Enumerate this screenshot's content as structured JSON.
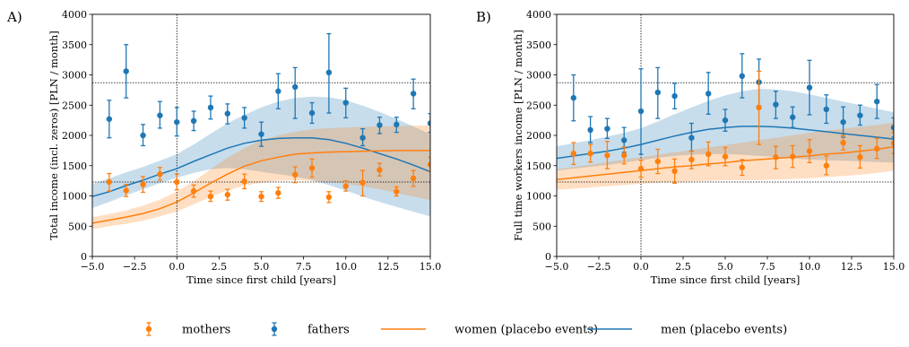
{
  "colors": {
    "mothers": "#ff7f0e",
    "fathers": "#1f77b4"
  },
  "legend": {
    "items": [
      {
        "label": "mothers",
        "kind": "errorbar",
        "series": "mothers"
      },
      {
        "label": "fathers",
        "kind": "errorbar",
        "series": "fathers"
      },
      {
        "label": "women (placebo events)",
        "kind": "line",
        "series": "mothers"
      },
      {
        "label": "men (placebo events)",
        "kind": "line",
        "series": "fathers"
      }
    ]
  },
  "chart_data": [
    {
      "type": "scatter",
      "panel_label": "A)",
      "xlabel": "Time since first child [years]",
      "ylabel": "Total income (incl. zeros) [PLN / month]",
      "xlim": [
        -5,
        15
      ],
      "ylim": [
        0,
        4000
      ],
      "xticks": [
        "−5.0",
        "−2.5",
        "0.0",
        "2.5",
        "5.0",
        "7.5",
        "10.0",
        "12.5",
        "15.0"
      ],
      "xtick_values": [
        -5,
        -2.5,
        0,
        2.5,
        5,
        7.5,
        10,
        12.5,
        15
      ],
      "yticks": [
        "0",
        "500",
        "1000",
        "1500",
        "2000",
        "2500",
        "3000",
        "3500",
        "4000"
      ],
      "ytick_values": [
        0,
        500,
        1000,
        1500,
        2000,
        2500,
        3000,
        3500,
        4000
      ],
      "hlines": [
        2870,
        1230
      ],
      "vline": 0,
      "series": [
        {
          "name": "fathers",
          "points": [
            {
              "x": -4,
              "y": 2270,
              "lo": 1960,
              "hi": 2580
            },
            {
              "x": -3,
              "y": 3060,
              "lo": 2620,
              "hi": 3500
            },
            {
              "x": -2,
              "y": 2000,
              "lo": 1830,
              "hi": 2180
            },
            {
              "x": -1,
              "y": 2330,
              "lo": 2120,
              "hi": 2560
            },
            {
              "x": 0,
              "y": 2220,
              "lo": 1990,
              "hi": 2460
            },
            {
              "x": 1,
              "y": 2240,
              "lo": 2080,
              "hi": 2400
            },
            {
              "x": 2,
              "y": 2460,
              "lo": 2270,
              "hi": 2650
            },
            {
              "x": 3,
              "y": 2360,
              "lo": 2190,
              "hi": 2520
            },
            {
              "x": 4,
              "y": 2290,
              "lo": 2120,
              "hi": 2460
            },
            {
              "x": 5,
              "y": 2020,
              "lo": 1820,
              "hi": 2220
            },
            {
              "x": 6,
              "y": 2730,
              "lo": 2440,
              "hi": 3020
            },
            {
              "x": 7,
              "y": 2800,
              "lo": 2280,
              "hi": 3120
            },
            {
              "x": 8,
              "y": 2370,
              "lo": 2200,
              "hi": 2540
            },
            {
              "x": 9,
              "y": 3040,
              "lo": 2370,
              "hi": 3680
            },
            {
              "x": 10,
              "y": 2540,
              "lo": 2290,
              "hi": 2780
            },
            {
              "x": 11,
              "y": 1960,
              "lo": 1830,
              "hi": 2110
            },
            {
              "x": 12,
              "y": 2170,
              "lo": 2030,
              "hi": 2300
            },
            {
              "x": 13,
              "y": 2180,
              "lo": 2050,
              "hi": 2300
            },
            {
              "x": 14,
              "y": 2690,
              "lo": 2440,
              "hi": 2930
            },
            {
              "x": 15,
              "y": 2200,
              "lo": 2050,
              "hi": 2360
            }
          ]
        },
        {
          "name": "mothers",
          "points": [
            {
              "x": -4,
              "y": 1230,
              "lo": 1080,
              "hi": 1370
            },
            {
              "x": -3,
              "y": 1090,
              "lo": 990,
              "hi": 1190
            },
            {
              "x": -2,
              "y": 1190,
              "lo": 1060,
              "hi": 1320
            },
            {
              "x": -1,
              "y": 1360,
              "lo": 1260,
              "hi": 1470
            },
            {
              "x": 0,
              "y": 1230,
              "lo": 1100,
              "hi": 1360
            },
            {
              "x": 1,
              "y": 1080,
              "lo": 980,
              "hi": 1180
            },
            {
              "x": 2,
              "y": 990,
              "lo": 910,
              "hi": 1080
            },
            {
              "x": 3,
              "y": 1020,
              "lo": 930,
              "hi": 1110
            },
            {
              "x": 4,
              "y": 1240,
              "lo": 1120,
              "hi": 1360
            },
            {
              "x": 5,
              "y": 990,
              "lo": 910,
              "hi": 1070
            },
            {
              "x": 6,
              "y": 1050,
              "lo": 960,
              "hi": 1140
            },
            {
              "x": 7,
              "y": 1350,
              "lo": 1220,
              "hi": 1480
            },
            {
              "x": 8,
              "y": 1460,
              "lo": 1310,
              "hi": 1610
            },
            {
              "x": 9,
              "y": 980,
              "lo": 890,
              "hi": 1070
            },
            {
              "x": 10,
              "y": 1160,
              "lo": 1080,
              "hi": 1250
            },
            {
              "x": 11,
              "y": 1220,
              "lo": 1000,
              "hi": 1420
            },
            {
              "x": 12,
              "y": 1430,
              "lo": 1330,
              "hi": 1540
            },
            {
              "x": 13,
              "y": 1070,
              "lo": 1000,
              "hi": 1150
            },
            {
              "x": 14,
              "y": 1290,
              "lo": 1160,
              "hi": 1420
            },
            {
              "x": 15,
              "y": 1520,
              "lo": 1400,
              "hi": 1640
            }
          ]
        }
      ],
      "placebo": [
        {
          "name": "men (placebo events)",
          "series": "fathers",
          "x": [
            -5,
            -4,
            -3,
            -2,
            -1,
            0,
            1,
            2,
            3,
            4,
            5,
            6,
            7,
            8,
            9,
            10,
            11,
            12,
            13,
            14,
            15
          ],
          "y": [
            990,
            1070,
            1170,
            1260,
            1360,
            1450,
            1570,
            1680,
            1790,
            1870,
            1920,
            1950,
            1960,
            1960,
            1930,
            1870,
            1790,
            1700,
            1610,
            1510,
            1400
          ],
          "band_lo": [
            800,
            900,
            1010,
            1110,
            1210,
            1300,
            1380,
            1440,
            1460,
            1440,
            1400,
            1360,
            1320,
            1260,
            1180,
            1090,
            990,
            900,
            820,
            740,
            660
          ],
          "band_hi": [
            1200,
            1290,
            1390,
            1480,
            1580,
            1690,
            1850,
            2030,
            2200,
            2340,
            2460,
            2560,
            2620,
            2640,
            2630,
            2580,
            2490,
            2390,
            2270,
            2150,
            2020
          ]
        },
        {
          "name": "women (placebo events)",
          "series": "mothers",
          "x": [
            -5,
            -4,
            -3,
            -2,
            -1,
            0,
            1,
            2,
            3,
            4,
            5,
            6,
            7,
            8,
            9,
            10,
            11,
            12,
            13,
            14,
            15
          ],
          "y": [
            550,
            600,
            650,
            710,
            790,
            900,
            1050,
            1210,
            1360,
            1490,
            1580,
            1640,
            1690,
            1710,
            1725,
            1730,
            1740,
            1745,
            1750,
            1750,
            1750
          ],
          "band_lo": [
            450,
            500,
            540,
            590,
            660,
            740,
            860,
            980,
            1090,
            1170,
            1220,
            1250,
            1260,
            1250,
            1230,
            1200,
            1160,
            1110,
            1050,
            990,
            930
          ],
          "band_hi": [
            650,
            700,
            760,
            840,
            940,
            1070,
            1240,
            1440,
            1630,
            1790,
            1920,
            2000,
            2060,
            2100,
            2120,
            2130,
            2140,
            2150,
            2155,
            2160,
            2170
          ]
        }
      ]
    },
    {
      "type": "scatter",
      "panel_label": "B)",
      "xlabel": "Time since first child [years]",
      "ylabel": "Full time workers income [PLN / month]",
      "xlim": [
        -5,
        15
      ],
      "ylim": [
        0,
        4000
      ],
      "xticks": [
        "−5.0",
        "−2.5",
        "0.0",
        "2.5",
        "5.0",
        "7.5",
        "10.0",
        "12.5",
        "15.0"
      ],
      "xtick_values": [
        -5,
        -2.5,
        0,
        2.5,
        5,
        7.5,
        10,
        12.5,
        15
      ],
      "yticks": [
        "0",
        "500",
        "1000",
        "1500",
        "2000",
        "2500",
        "3000",
        "3500",
        "4000"
      ],
      "ytick_values": [
        0,
        500,
        1000,
        1500,
        2000,
        2500,
        3000,
        3500,
        4000
      ],
      "hlines": [
        2870,
        1230
      ],
      "vline": 0,
      "series": [
        {
          "name": "fathers",
          "points": [
            {
              "x": -4,
              "y": 2620,
              "lo": 2240,
              "hi": 3000
            },
            {
              "x": -3,
              "y": 2090,
              "lo": 1880,
              "hi": 2310
            },
            {
              "x": -2,
              "y": 2110,
              "lo": 1950,
              "hi": 2280
            },
            {
              "x": -1,
              "y": 1920,
              "lo": 1720,
              "hi": 2130
            },
            {
              "x": 0,
              "y": 2400,
              "lo": 1690,
              "hi": 3100
            },
            {
              "x": 1,
              "y": 2710,
              "lo": 2280,
              "hi": 3120
            },
            {
              "x": 2,
              "y": 2650,
              "lo": 2440,
              "hi": 2860
            },
            {
              "x": 3,
              "y": 1960,
              "lo": 1740,
              "hi": 2200
            },
            {
              "x": 4,
              "y": 2690,
              "lo": 2350,
              "hi": 3040
            },
            {
              "x": 5,
              "y": 2250,
              "lo": 2070,
              "hi": 2430
            },
            {
              "x": 6,
              "y": 2980,
              "lo": 2620,
              "hi": 3350
            },
            {
              "x": 7,
              "y": 2880,
              "lo": 2490,
              "hi": 3260
            },
            {
              "x": 8,
              "y": 2510,
              "lo": 2280,
              "hi": 2730
            },
            {
              "x": 9,
              "y": 2300,
              "lo": 2130,
              "hi": 2470
            },
            {
              "x": 10,
              "y": 2790,
              "lo": 2340,
              "hi": 3240
            },
            {
              "x": 11,
              "y": 2430,
              "lo": 2200,
              "hi": 2670
            },
            {
              "x": 12,
              "y": 2220,
              "lo": 1970,
              "hi": 2470
            },
            {
              "x": 13,
              "y": 2330,
              "lo": 2170,
              "hi": 2500
            },
            {
              "x": 14,
              "y": 2560,
              "lo": 2280,
              "hi": 2840
            },
            {
              "x": 15,
              "y": 2130,
              "lo": 1970,
              "hi": 2290
            }
          ]
        },
        {
          "name": "mothers",
          "points": [
            {
              "x": -4,
              "y": 1700,
              "lo": 1520,
              "hi": 1880
            },
            {
              "x": -3,
              "y": 1700,
              "lo": 1560,
              "hi": 1850
            },
            {
              "x": -2,
              "y": 1670,
              "lo": 1450,
              "hi": 1900
            },
            {
              "x": -1,
              "y": 1670,
              "lo": 1530,
              "hi": 1810
            },
            {
              "x": 0,
              "y": 1450,
              "lo": 1310,
              "hi": 1590
            },
            {
              "x": 1,
              "y": 1570,
              "lo": 1370,
              "hi": 1770
            },
            {
              "x": 2,
              "y": 1410,
              "lo": 1210,
              "hi": 1610
            },
            {
              "x": 3,
              "y": 1600,
              "lo": 1450,
              "hi": 1740
            },
            {
              "x": 4,
              "y": 1690,
              "lo": 1500,
              "hi": 1890
            },
            {
              "x": 5,
              "y": 1650,
              "lo": 1500,
              "hi": 1800
            },
            {
              "x": 6,
              "y": 1470,
              "lo": 1340,
              "hi": 1600
            },
            {
              "x": 7,
              "y": 2460,
              "lo": 1850,
              "hi": 3060
            },
            {
              "x": 8,
              "y": 1640,
              "lo": 1450,
              "hi": 1820
            },
            {
              "x": 9,
              "y": 1650,
              "lo": 1470,
              "hi": 1830
            },
            {
              "x": 10,
              "y": 1740,
              "lo": 1550,
              "hi": 1930
            },
            {
              "x": 11,
              "y": 1500,
              "lo": 1350,
              "hi": 1660
            },
            {
              "x": 12,
              "y": 1880,
              "lo": 1760,
              "hi": 2000
            },
            {
              "x": 13,
              "y": 1640,
              "lo": 1460,
              "hi": 1830
            },
            {
              "x": 14,
              "y": 1780,
              "lo": 1620,
              "hi": 1950
            },
            {
              "x": 15,
              "y": 1870,
              "lo": 1700,
              "hi": 2050
            }
          ]
        }
      ],
      "placebo": [
        {
          "name": "men (placebo events)",
          "series": "fathers",
          "x": [
            -5,
            -4,
            -3,
            -2,
            -1,
            0,
            1,
            2,
            3,
            4,
            5,
            6,
            7,
            8,
            9,
            10,
            11,
            12,
            13,
            14,
            15
          ],
          "y": [
            1620,
            1660,
            1700,
            1740,
            1790,
            1850,
            1920,
            1990,
            2050,
            2100,
            2130,
            2150,
            2150,
            2140,
            2120,
            2090,
            2060,
            2030,
            2000,
            1970,
            1940
          ],
          "band_lo": [
            1420,
            1450,
            1480,
            1510,
            1550,
            1590,
            1630,
            1660,
            1680,
            1690,
            1690,
            1680,
            1660,
            1640,
            1620,
            1600,
            1590,
            1580,
            1570,
            1560,
            1550
          ],
          "band_hi": [
            1820,
            1870,
            1920,
            1980,
            2040,
            2120,
            2230,
            2350,
            2460,
            2570,
            2660,
            2730,
            2770,
            2760,
            2730,
            2680,
            2620,
            2560,
            2500,
            2440,
            2380
          ]
        },
        {
          "name": "women (placebo events)",
          "series": "mothers",
          "x": [
            -5,
            -4,
            -3,
            -2,
            -1,
            0,
            1,
            2,
            3,
            4,
            5,
            6,
            7,
            8,
            9,
            10,
            11,
            12,
            13,
            14,
            15
          ],
          "y": [
            1270,
            1300,
            1330,
            1360,
            1390,
            1420,
            1450,
            1480,
            1500,
            1530,
            1550,
            1580,
            1600,
            1620,
            1640,
            1660,
            1690,
            1710,
            1740,
            1770,
            1810
          ],
          "band_lo": [
            1100,
            1120,
            1140,
            1160,
            1180,
            1200,
            1220,
            1230,
            1240,
            1250,
            1260,
            1260,
            1260,
            1270,
            1280,
            1290,
            1310,
            1330,
            1350,
            1380,
            1420
          ],
          "band_hi": [
            1440,
            1480,
            1520,
            1560,
            1600,
            1640,
            1680,
            1720,
            1760,
            1800,
            1840,
            1880,
            1920,
            1960,
            2000,
            2040,
            2080,
            2110,
            2140,
            2170,
            2210
          ]
        }
      ]
    }
  ]
}
